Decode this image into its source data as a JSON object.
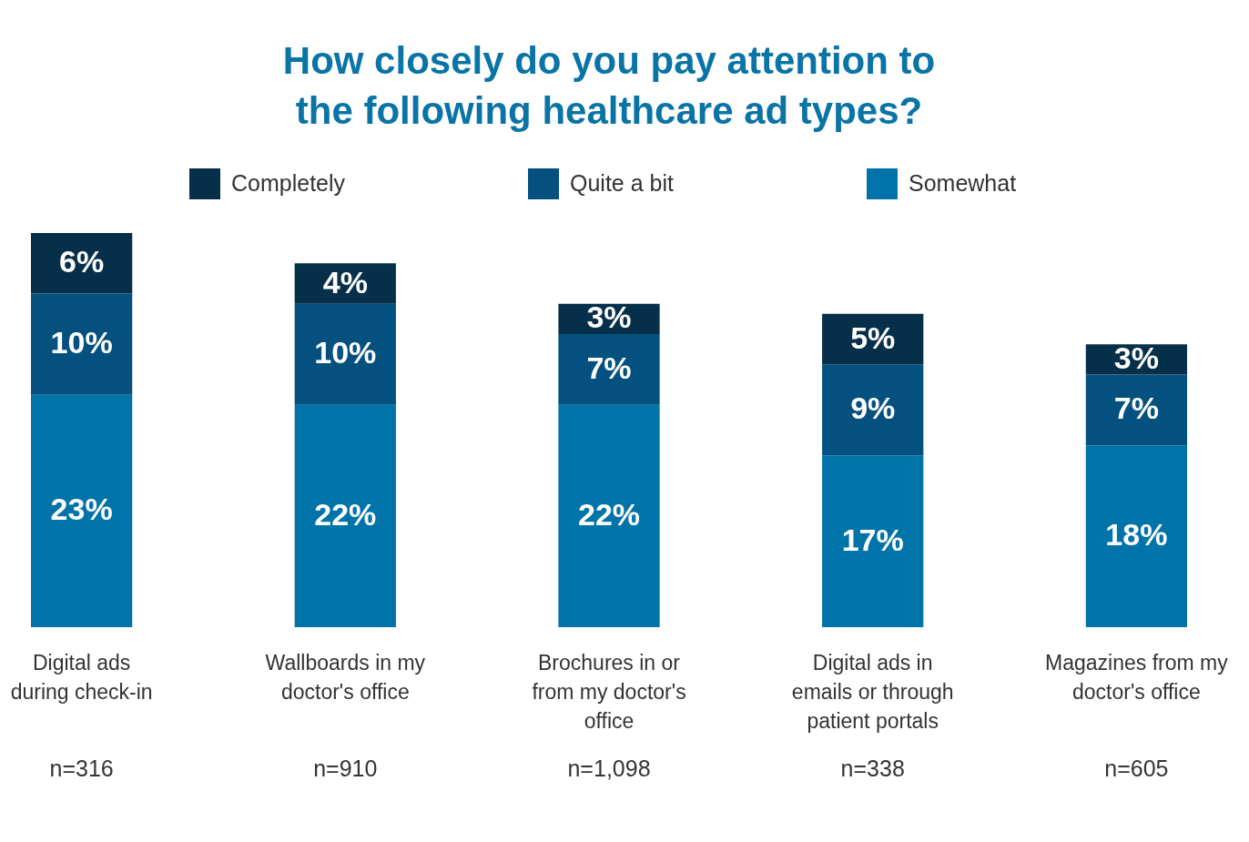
{
  "chart_data": {
    "type": "bar",
    "title": "How closely do you pay attention to the following healthcare ad types?",
    "stacked": true,
    "legend": "top",
    "categories": [
      "Digital ads during check-in",
      "Wallboards in my doctor's office",
      "Brochures in or from my doctor's office",
      "Digital ads in emails or through patient portals",
      "Magazines from my doctor's office"
    ],
    "series": [
      {
        "name": "Somewhat",
        "color": "#0073a8",
        "values": [
          23,
          22,
          22,
          17,
          18
        ],
        "value_labels": [
          "23%",
          "22%",
          "22%",
          "17%",
          "18%"
        ]
      },
      {
        "name": "Quite a bit",
        "color": "#04517f",
        "values": [
          10,
          10,
          7,
          9,
          7
        ],
        "value_labels": [
          "10%",
          "10%",
          "7%",
          "9%",
          "7%"
        ]
      },
      {
        "name": "Completely",
        "color": "#062f4a",
        "values": [
          6,
          4,
          3,
          5,
          3
        ],
        "value_labels": [
          "6%",
          "4%",
          "3%",
          "5%",
          "3%"
        ]
      }
    ],
    "annotations": [
      "n=316",
      "n=910",
      "n=1,098",
      "n=338",
      "n=605"
    ]
  }
}
